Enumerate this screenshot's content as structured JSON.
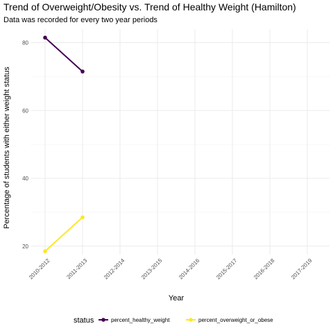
{
  "chart_data": {
    "type": "line",
    "title": "Trend of Overweight/Obesity vs. Trend of Healthy Weight (Hamilton)",
    "subtitle": "Data was recorded for every two year periods",
    "xlabel": "Year",
    "ylabel": "Percentage of students with either weight status",
    "categories": [
      "2010-2012",
      "2011-2013",
      "2012-2014",
      "2013-2015",
      "2014-2016",
      "2015-2017",
      "2016-2018",
      "2017-2019"
    ],
    "ylim": [
      17.5,
      84
    ],
    "yticks": [
      "20",
      "40",
      "60",
      "80"
    ],
    "grid": true,
    "legend": {
      "title": "status",
      "placement": "bottom"
    },
    "series": [
      {
        "name": "percent_healthy_weight",
        "color": "#440154",
        "values": [
          81.5,
          71.5,
          null,
          null,
          null,
          null,
          null,
          null
        ]
      },
      {
        "name": "percent_overweight_or_obese",
        "color": "#FDE725",
        "values": [
          18.5,
          28.5,
          null,
          null,
          null,
          null,
          null,
          null
        ]
      }
    ]
  }
}
